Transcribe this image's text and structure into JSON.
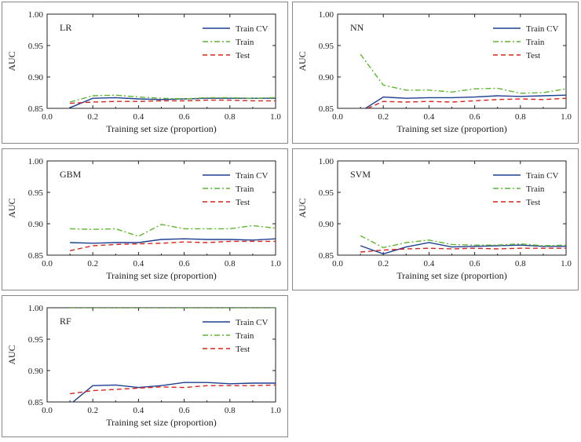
{
  "colors": {
    "train_cv": "#1f3f8f",
    "train": "#5cb82e",
    "test": "#d9231c",
    "axis": "#222222",
    "panel_border": "#888888"
  },
  "chart_data": [
    {
      "type": "line",
      "title": "LR",
      "xlabel": "Training set size (proportion)",
      "ylabel": "AUC",
      "xlim": [
        0.0,
        1.0
      ],
      "ylim": [
        0.85,
        1.0
      ],
      "xticks": [
        "0.0",
        "0.2",
        "0.4",
        "0.6",
        "0.8",
        "1.0"
      ],
      "yticks": [
        "0.85",
        "0.90",
        "0.95",
        "1.00"
      ],
      "legend": "top-right",
      "x": [
        0.1,
        0.2,
        0.3,
        0.4,
        0.5,
        0.6,
        0.7,
        0.8,
        0.9,
        1.0
      ],
      "series": [
        {
          "name": "Train CV",
          "style": "solid",
          "values": [
            0.851,
            0.866,
            0.867,
            0.865,
            0.864,
            0.865,
            0.866,
            0.866,
            0.866,
            0.866
          ]
        },
        {
          "name": "Train",
          "style": "dashdot",
          "values": [
            0.86,
            0.87,
            0.871,
            0.868,
            0.866,
            0.865,
            0.867,
            0.867,
            0.866,
            0.867
          ]
        },
        {
          "name": "Test",
          "style": "dashed",
          "values": [
            0.858,
            0.86,
            0.861,
            0.861,
            0.862,
            0.862,
            0.863,
            0.863,
            0.862,
            0.862
          ]
        }
      ]
    },
    {
      "type": "line",
      "title": "NN",
      "xlabel": "Training set size (proportion)",
      "ylabel": "AUC",
      "xlim": [
        0.0,
        1.0
      ],
      "ylim": [
        0.85,
        1.0
      ],
      "xticks": [
        "0.0",
        "0.2",
        "0.4",
        "0.6",
        "0.8",
        "1.0"
      ],
      "yticks": [
        "0.85",
        "0.90",
        "0.95",
        "1.00"
      ],
      "legend": "top-right",
      "x": [
        0.1,
        0.2,
        0.3,
        0.4,
        0.5,
        0.6,
        0.7,
        0.8,
        0.9,
        1.0
      ],
      "series": [
        {
          "name": "Train CV",
          "style": "solid",
          "values": [
            0.845,
            0.868,
            0.866,
            0.867,
            0.867,
            0.868,
            0.87,
            0.869,
            0.87,
            0.871
          ]
        },
        {
          "name": "Train",
          "style": "dashdot",
          "values": [
            0.936,
            0.887,
            0.879,
            0.879,
            0.876,
            0.881,
            0.882,
            0.874,
            0.875,
            0.881
          ]
        },
        {
          "name": "Test",
          "style": "dashed",
          "values": [
            0.845,
            0.861,
            0.86,
            0.861,
            0.86,
            0.862,
            0.864,
            0.865,
            0.864,
            0.866
          ]
        }
      ]
    },
    {
      "type": "line",
      "title": "GBM",
      "xlabel": "Training set size (proportion)",
      "ylabel": "AUC",
      "xlim": [
        0.0,
        1.0
      ],
      "ylim": [
        0.85,
        1.0
      ],
      "xticks": [
        "0.0",
        "0.2",
        "0.4",
        "0.6",
        "0.8",
        "1.0"
      ],
      "yticks": [
        "0.85",
        "0.90",
        "0.95",
        "1.00"
      ],
      "legend": "top-right",
      "x": [
        0.1,
        0.2,
        0.3,
        0.4,
        0.5,
        0.6,
        0.7,
        0.8,
        0.9,
        1.0
      ],
      "series": [
        {
          "name": "Train CV",
          "style": "solid",
          "values": [
            0.87,
            0.869,
            0.87,
            0.87,
            0.875,
            0.876,
            0.875,
            0.875,
            0.874,
            0.876
          ]
        },
        {
          "name": "Train",
          "style": "dashdot",
          "values": [
            0.892,
            0.891,
            0.892,
            0.88,
            0.899,
            0.892,
            0.892,
            0.892,
            0.897,
            0.893
          ]
        },
        {
          "name": "Test",
          "style": "dashed",
          "values": [
            0.857,
            0.865,
            0.867,
            0.868,
            0.869,
            0.871,
            0.87,
            0.872,
            0.872,
            0.872
          ]
        }
      ]
    },
    {
      "type": "line",
      "title": "SVM",
      "xlabel": "Training set size (proportion)",
      "ylabel": "AUC",
      "xlim": [
        0.0,
        1.0
      ],
      "ylim": [
        0.85,
        1.0
      ],
      "xticks": [
        "0.0",
        "0.2",
        "0.4",
        "0.6",
        "0.8",
        "1.0"
      ],
      "yticks": [
        "0.85",
        "0.90",
        "0.95",
        "1.00"
      ],
      "legend": "top-right",
      "x": [
        0.1,
        0.2,
        0.3,
        0.4,
        0.5,
        0.6,
        0.7,
        0.8,
        0.9,
        1.0
      ],
      "series": [
        {
          "name": "Train CV",
          "style": "solid",
          "values": [
            0.865,
            0.852,
            0.863,
            0.87,
            0.863,
            0.864,
            0.865,
            0.866,
            0.864,
            0.864
          ]
        },
        {
          "name": "Train",
          "style": "dashdot",
          "values": [
            0.881,
            0.862,
            0.87,
            0.874,
            0.867,
            0.866,
            0.866,
            0.868,
            0.865,
            0.866
          ]
        },
        {
          "name": "Test",
          "style": "dashed",
          "values": [
            0.855,
            0.858,
            0.86,
            0.861,
            0.86,
            0.861,
            0.86,
            0.861,
            0.861,
            0.861
          ]
        }
      ]
    },
    {
      "type": "line",
      "title": "RF",
      "xlabel": "Training set size (proportion)",
      "ylabel": "AUC",
      "xlim": [
        0.0,
        1.0
      ],
      "ylim": [
        0.85,
        1.0
      ],
      "xticks": [
        "0.0",
        "0.2",
        "0.4",
        "0.6",
        "0.8",
        "1.0"
      ],
      "yticks": [
        "0.85",
        "0.90",
        "0.95",
        "1.00"
      ],
      "legend": "top-right",
      "x": [
        0.1,
        0.2,
        0.3,
        0.4,
        0.5,
        0.6,
        0.7,
        0.8,
        0.9,
        1.0
      ],
      "series": [
        {
          "name": "Train CV",
          "style": "solid",
          "values": [
            0.846,
            0.876,
            0.877,
            0.873,
            0.876,
            0.881,
            0.881,
            0.879,
            0.88,
            0.88
          ]
        },
        {
          "name": "Train",
          "style": "dashdot",
          "values": [
            1.0,
            1.0,
            1.0,
            1.0,
            1.0,
            1.0,
            1.0,
            1.0,
            1.0,
            1.0
          ]
        },
        {
          "name": "Test",
          "style": "dashed",
          "values": [
            0.863,
            0.868,
            0.87,
            0.872,
            0.874,
            0.873,
            0.876,
            0.876,
            0.876,
            0.877
          ]
        }
      ]
    }
  ]
}
